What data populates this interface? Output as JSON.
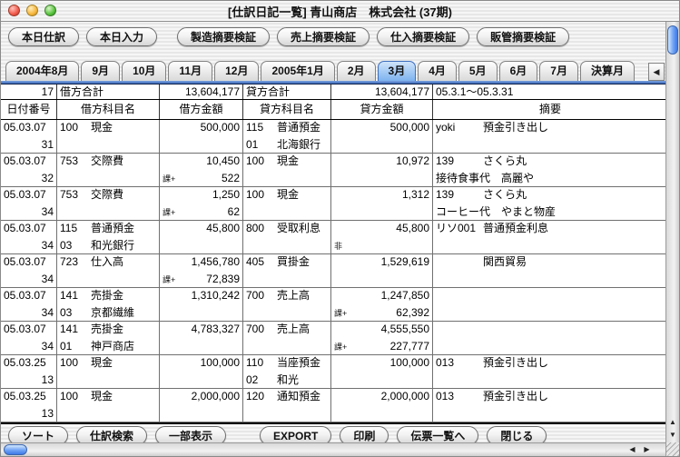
{
  "window": {
    "title": "[仕訳日記一覧] 青山商店　株式会社 (37期)"
  },
  "colors": {
    "accent_blue": "#6fa3f5",
    "selected_tab": "#7eb3ef",
    "grid_line": "#707070"
  },
  "toolbar": {
    "buttons": [
      "本日仕訳",
      "本日入力",
      "製造摘要検証",
      "売上摘要検証",
      "仕入摘要検証",
      "販管摘要検証"
    ]
  },
  "tabs": {
    "items": [
      "2004年8月",
      "9月",
      "10月",
      "11月",
      "12月",
      "2005年1月",
      "2月",
      "3月",
      "4月",
      "5月",
      "6月",
      "7月",
      "決算月"
    ],
    "selected": "3月",
    "scroll_left_icon": "◀"
  },
  "summary": {
    "count": "17",
    "debit_label": "借方合計",
    "debit_total": "13,604,177",
    "credit_label": "貸方合計",
    "credit_total": "13,604,177",
    "period": "05.3.1～05.3.31"
  },
  "table": {
    "headers": [
      "日付番号",
      "借方科目名",
      "借方金額",
      "貸方科目名",
      "貸方金額",
      "摘要"
    ],
    "rows": [
      {
        "date": "05.03.07",
        "no": "31",
        "debit": {
          "code": "100",
          "name": "現金",
          "sub": "",
          "sub_name": "",
          "amount": "500,000",
          "tax_tag": "",
          "tax": ""
        },
        "credit": {
          "code": "115",
          "name": "普通預金",
          "sub": "01",
          "sub_name": "北海銀行",
          "amount": "500,000",
          "tax_tag": "",
          "tax": ""
        },
        "memo": {
          "code": "yoki",
          "text": "預金引き出し",
          "text2": ""
        }
      },
      {
        "date": "05.03.07",
        "no": "32",
        "debit": {
          "code": "753",
          "name": "交際費",
          "sub": "",
          "sub_name": "",
          "amount": "10,450",
          "tax_tag": "課+",
          "tax": "522"
        },
        "credit": {
          "code": "100",
          "name": "現金",
          "sub": "",
          "sub_name": "",
          "amount": "10,972",
          "tax_tag": "",
          "tax": ""
        },
        "memo": {
          "code": "139",
          "text": "さくら丸",
          "text2": "接待食事代　高麗や"
        }
      },
      {
        "date": "05.03.07",
        "no": "34",
        "debit": {
          "code": "753",
          "name": "交際費",
          "sub": "",
          "sub_name": "",
          "amount": "1,250",
          "tax_tag": "課+",
          "tax": "62"
        },
        "credit": {
          "code": "100",
          "name": "現金",
          "sub": "",
          "sub_name": "",
          "amount": "1,312",
          "tax_tag": "",
          "tax": ""
        },
        "memo": {
          "code": "139",
          "text": "さくら丸",
          "text2": "コーヒー代　やまと物産"
        }
      },
      {
        "date": "05.03.07",
        "no": "34",
        "debit": {
          "code": "115",
          "name": "普通預金",
          "sub": "03",
          "sub_name": "和光銀行",
          "amount": "45,800",
          "tax_tag": "",
          "tax": ""
        },
        "credit": {
          "code": "800",
          "name": "受取利息",
          "sub": "",
          "sub_name": "",
          "amount": "45,800",
          "tax_tag": "非",
          "tax": ""
        },
        "memo": {
          "code": "リソ001",
          "text": "普通預金利息",
          "text2": ""
        }
      },
      {
        "date": "05.03.07",
        "no": "34",
        "debit": {
          "code": "723",
          "name": "仕入高",
          "sub": "",
          "sub_name": "",
          "amount": "1,456,780",
          "tax_tag": "課+",
          "tax": "72,839"
        },
        "credit": {
          "code": "405",
          "name": "買掛金",
          "sub": "",
          "sub_name": "",
          "amount": "1,529,619",
          "tax_tag": "",
          "tax": ""
        },
        "memo": {
          "code": "",
          "text": "関西貿易",
          "text2": ""
        }
      },
      {
        "date": "05.03.07",
        "no": "34",
        "debit": {
          "code": "141",
          "name": "売掛金",
          "sub": "03",
          "sub_name": "京都繊維",
          "amount": "1,310,242",
          "tax_tag": "",
          "tax": ""
        },
        "credit": {
          "code": "700",
          "name": "売上高",
          "sub": "",
          "sub_name": "",
          "amount": "1,247,850",
          "tax_tag": "課+",
          "tax": "62,392"
        },
        "memo": {
          "code": "",
          "text": "",
          "text2": ""
        }
      },
      {
        "date": "05.03.07",
        "no": "34",
        "debit": {
          "code": "141",
          "name": "売掛金",
          "sub": "01",
          "sub_name": "神戸商店",
          "amount": "4,783,327",
          "tax_tag": "",
          "tax": ""
        },
        "credit": {
          "code": "700",
          "name": "売上高",
          "sub": "",
          "sub_name": "",
          "amount": "4,555,550",
          "tax_tag": "課+",
          "tax": "227,777"
        },
        "memo": {
          "code": "",
          "text": "",
          "text2": ""
        }
      },
      {
        "date": "05.03.25",
        "no": "13",
        "debit": {
          "code": "100",
          "name": "現金",
          "sub": "",
          "sub_name": "",
          "amount": "100,000",
          "tax_tag": "",
          "tax": ""
        },
        "credit": {
          "code": "110",
          "name": "当座預金",
          "sub": "02",
          "sub_name": "和光",
          "amount": "100,000",
          "tax_tag": "",
          "tax": ""
        },
        "memo": {
          "code": "013",
          "text": "預金引き出し",
          "text2": ""
        }
      },
      {
        "date": "05.03.25",
        "no": "13",
        "debit": {
          "code": "100",
          "name": "現金",
          "sub": "",
          "sub_name": "",
          "amount": "2,000,000",
          "tax_tag": "",
          "tax": ""
        },
        "credit": {
          "code": "120",
          "name": "通知預金",
          "sub": "",
          "sub_name": "",
          "amount": "2,000,000",
          "tax_tag": "",
          "tax": ""
        },
        "memo": {
          "code": "013",
          "text": "預金引き出し",
          "text2": ""
        }
      }
    ]
  },
  "footer": {
    "buttons": [
      "ソート",
      "仕訳検索",
      "一部表示",
      "EXPORT",
      "印刷",
      "伝票一覧へ",
      "閉じる"
    ]
  },
  "scrollbars": {
    "up_icon": "▲",
    "down_icon": "▼",
    "left_icon": "◀",
    "right_icon": "▶"
  }
}
